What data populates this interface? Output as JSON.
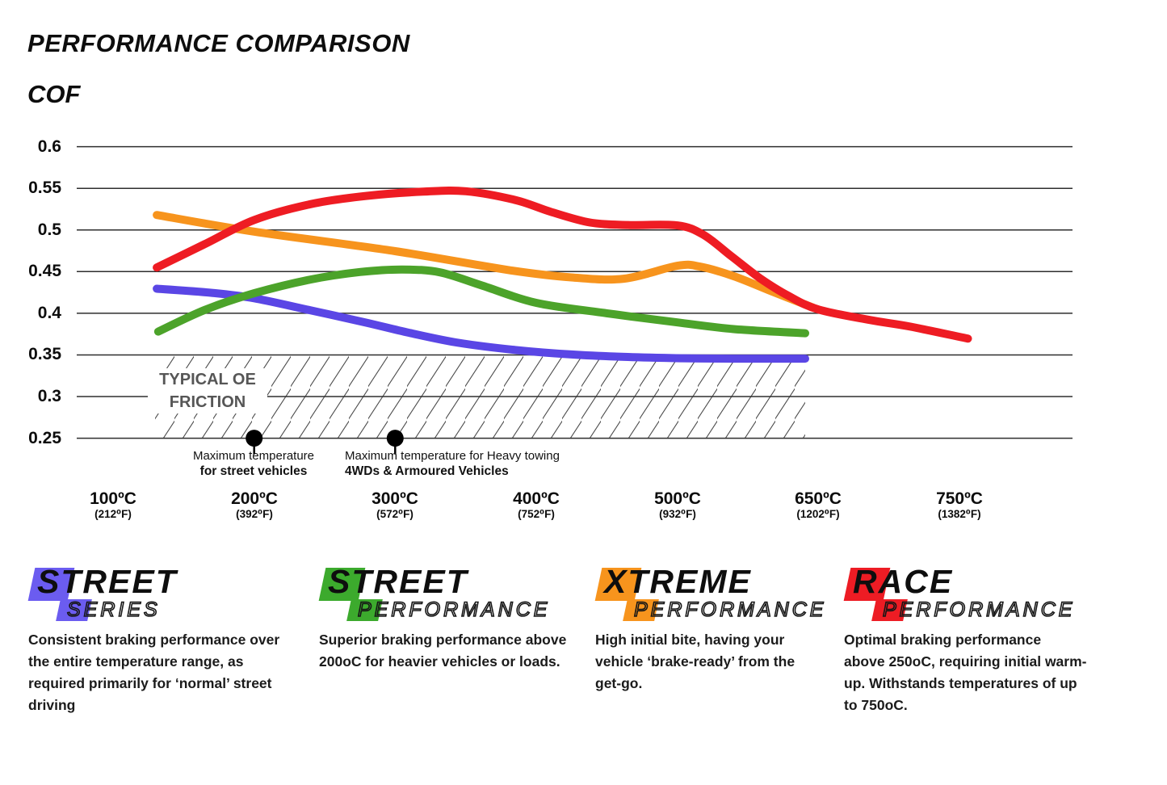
{
  "header": {
    "title": "PERFORMANCE COMPARISON",
    "axis_title": "COF"
  },
  "chart_data": {
    "type": "line",
    "title": "PERFORMANCE COMPARISON",
    "ylabel": "COF",
    "ylim": [
      0.25,
      0.6
    ],
    "grid": "horizontal",
    "y_ticks": [
      "0.6",
      "0.55",
      "0.5",
      "0.45",
      "0.4",
      "0.35",
      "0.3",
      "0.25"
    ],
    "x_ticks": [
      {
        "value": 100,
        "label_c": "100ºC",
        "label_f": "(212⁰F)"
      },
      {
        "value": 200,
        "label_c": "200ºC",
        "label_f": "(392⁰F)"
      },
      {
        "value": 300,
        "label_c": "300ºC",
        "label_f": "(572⁰F)"
      },
      {
        "value": 400,
        "label_c": "400ºC",
        "label_f": "(752⁰F)"
      },
      {
        "value": 500,
        "label_c": "500ºC",
        "label_f": "(932⁰F)"
      },
      {
        "value": 650,
        "label_c": "650ºC",
        "label_f": "(1202⁰F)"
      },
      {
        "value": 750,
        "label_c": "750ºC",
        "label_f": "(1382⁰F)"
      }
    ],
    "series": [
      {
        "name": "Street Series",
        "color": "#5a46e5",
        "points": [
          [
            131,
            0.4295
          ],
          [
            170,
            0.4245
          ],
          [
            200,
            0.418
          ],
          [
            240,
            0.4035
          ],
          [
            280,
            0.3885
          ],
          [
            310,
            0.3765
          ],
          [
            345,
            0.3645
          ],
          [
            385,
            0.356
          ],
          [
            425,
            0.3505
          ],
          [
            465,
            0.3475
          ],
          [
            505,
            0.346
          ],
          [
            560,
            0.3455
          ],
          [
            636,
            0.3455
          ]
        ]
      },
      {
        "name": "Street Performance",
        "color": "#4ca32a",
        "points": [
          [
            132,
            0.378
          ],
          [
            165,
            0.404
          ],
          [
            200,
            0.424
          ],
          [
            240,
            0.4405
          ],
          [
            275,
            0.4495
          ],
          [
            305,
            0.4525
          ],
          [
            332,
            0.449
          ],
          [
            362,
            0.433
          ],
          [
            400,
            0.4125
          ],
          [
            450,
            0.4
          ],
          [
            500,
            0.389
          ],
          [
            560,
            0.381
          ],
          [
            636,
            0.376
          ]
        ]
      },
      {
        "name": "Xtreme Performance",
        "color": "#f7941d",
        "points": [
          [
            131,
            0.518
          ],
          [
            200,
            0.498
          ],
          [
            300,
            0.4745
          ],
          [
            380,
            0.452
          ],
          [
            425,
            0.443
          ],
          [
            462,
            0.4415
          ],
          [
            500,
            0.457
          ],
          [
            524,
            0.456
          ],
          [
            560,
            0.4445
          ],
          [
            600,
            0.4265
          ],
          [
            644,
            0.407
          ]
        ]
      },
      {
        "name": "Race Performance",
        "color": "#ee1c23",
        "points": [
          [
            131,
            0.455
          ],
          [
            165,
            0.483
          ],
          [
            200,
            0.512
          ],
          [
            240,
            0.531
          ],
          [
            280,
            0.541
          ],
          [
            320,
            0.546
          ],
          [
            350,
            0.5465
          ],
          [
            385,
            0.536
          ],
          [
            410,
            0.522
          ],
          [
            438,
            0.509
          ],
          [
            465,
            0.506
          ],
          [
            500,
            0.5055
          ],
          [
            528,
            0.494
          ],
          [
            558,
            0.468
          ],
          [
            588,
            0.442
          ],
          [
            618,
            0.421
          ],
          [
            650,
            0.4045
          ],
          [
            686,
            0.392
          ],
          [
            715,
            0.384
          ],
          [
            756,
            0.3695
          ]
        ]
      }
    ],
    "oe_zone": {
      "line1": "TYPICAL OE",
      "line2": "FRICTION",
      "cof_range": [
        0.25,
        0.35
      ]
    },
    "markers": [
      {
        "temp": 200,
        "line1": "Maximum temperature",
        "line2": "for street vehicles"
      },
      {
        "temp": 300,
        "line1": "Maximum temperature for Heavy towing",
        "line2": "4WDs & Armoured Vehicles"
      }
    ]
  },
  "legend": [
    {
      "line1": "STREET",
      "line2": "SERIES",
      "color": "#6b5cf0",
      "description_lines": [
        "Consistent braking performance over",
        "the entire temperature range, as",
        "required primarily for ‘normal’ street",
        "driving"
      ]
    },
    {
      "line1": "STREET",
      "line2": "PERFORMANCE",
      "color": "#3caa2d",
      "description_lines": [
        "Superior braking performance above",
        "200oC for heavier vehicles or loads.",
        "",
        ""
      ]
    },
    {
      "line1": "XTREME",
      "line2": "PERFORMANCE",
      "color": "#f7941d",
      "description_lines": [
        "High initial bite, having your",
        "vehicle ‘brake-ready’ from the",
        "get-go.",
        ""
      ]
    },
    {
      "line1": "RACE",
      "line2": "PERFORMANCE",
      "color": "#ed1c24",
      "description_lines": [
        "Optimal braking performance",
        "above 250oC, requiring initial warm-",
        "up. Withstands temperatures of up",
        "to 750oC."
      ]
    }
  ]
}
